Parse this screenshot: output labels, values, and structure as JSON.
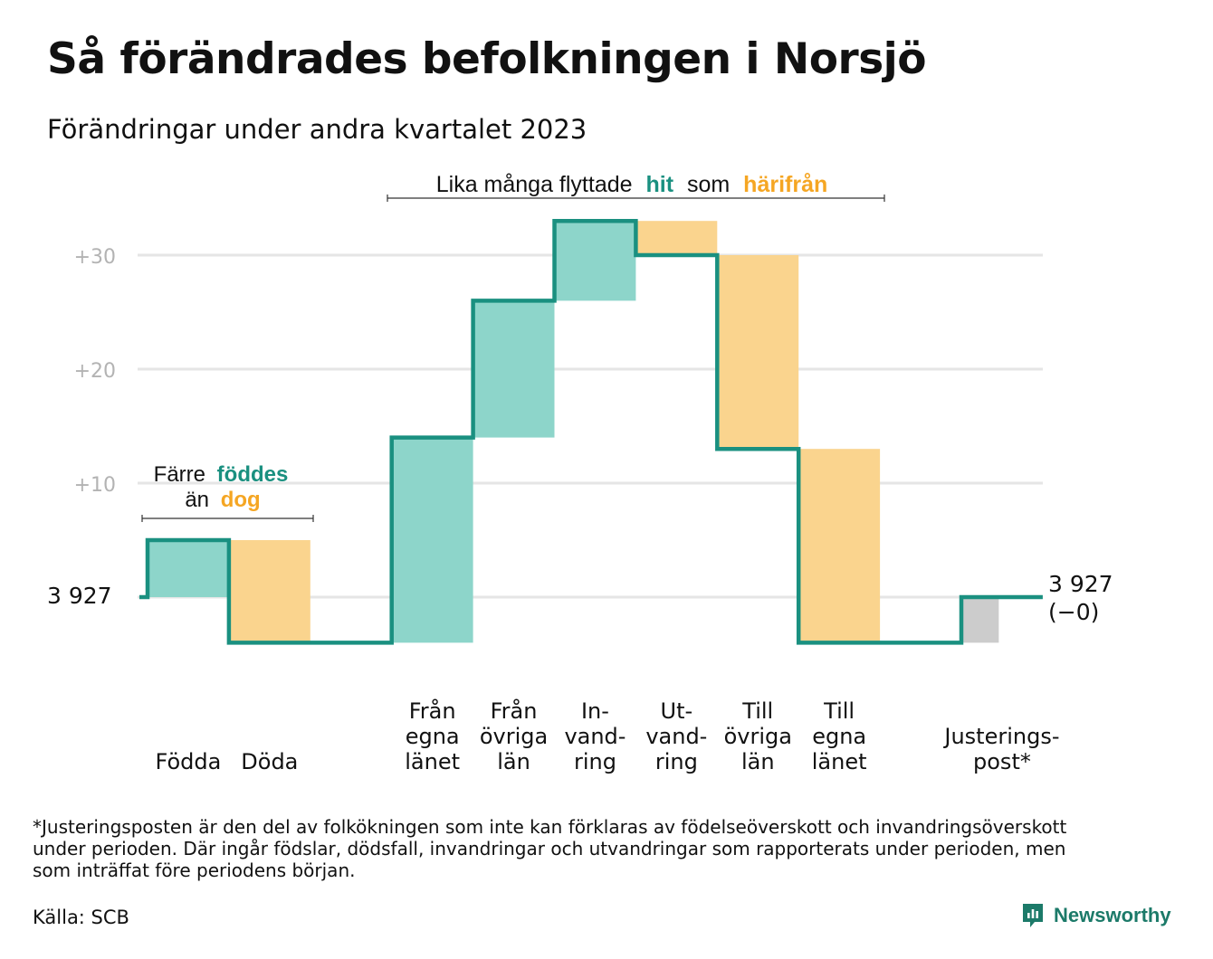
{
  "title": "Så förändrades befolkningen i Norsjö",
  "subtitle": "Förändringar under andra kvartalet 2023",
  "annotations": {
    "birth_death": {
      "line1_prefix": "Färre",
      "line1_highlight": "föddes",
      "line2_prefix": "än",
      "line2_highlight": "dog"
    },
    "migration": {
      "prefix": "Lika många flyttade",
      "highlight_in": "hit",
      "middle": "som",
      "highlight_out": "härifrån"
    }
  },
  "start_label": "3  927",
  "end_label": {
    "value": "3 927",
    "change": "(−0)"
  },
  "footnote": "*Justeringsposten är den del av folkökningen som inte kan förklaras av födelseöverskott och invandringsöverskott\nunder perioden. Där ingår födslar, dödsfall, invandringar och utvandringar som rapporterats under perioden, men\nsom inträffat före periodens början.",
  "source": "Källa: SCB",
  "logo": "Newsworthy",
  "colors": {
    "increase": "#8dd5ca",
    "decrease": "#fad48e",
    "adjustment": "#cccccc",
    "line": "#1a9080",
    "gridline": "#e5e5e5",
    "tick": "#b3b3b3",
    "highlight_in": "#1a9080",
    "highlight_out": "#f5a623"
  },
  "chart_data": {
    "type": "waterfall",
    "title": "Så förändrades befolkningen i Norsjö",
    "subtitle": "Förändringar under andra kvartalet 2023",
    "start_value": 3927,
    "end_value": 3927,
    "y_ticks": [
      {
        "value": 10,
        "label": "+10"
      },
      {
        "value": 20,
        "label": "+20"
      },
      {
        "value": 30,
        "label": "+30"
      }
    ],
    "ylim": [
      -6,
      34
    ],
    "grid": true,
    "steps": [
      {
        "label": [
          "Födda"
        ],
        "kind": "increase",
        "value": 5
      },
      {
        "label": [
          "Döda"
        ],
        "kind": "decrease",
        "value": -9
      },
      {
        "label": [],
        "kind": "gap",
        "value": 0
      },
      {
        "label": [
          "Från",
          "egna",
          "länet"
        ],
        "kind": "increase",
        "value": 18
      },
      {
        "label": [
          "Från",
          "övriga",
          "län"
        ],
        "kind": "increase",
        "value": 12
      },
      {
        "label": [
          "In-",
          "vand-",
          "ring"
        ],
        "kind": "increase",
        "value": 7
      },
      {
        "label": [
          "Ut-",
          "vand-",
          "ring"
        ],
        "kind": "decrease",
        "value": -3
      },
      {
        "label": [
          "Till",
          "övriga",
          "län"
        ],
        "kind": "decrease",
        "value": -17
      },
      {
        "label": [
          "Till",
          "egna",
          "länet"
        ],
        "kind": "decrease",
        "value": -17
      },
      {
        "label": [],
        "kind": "gap",
        "value": 0
      },
      {
        "label": [
          "Justerings-",
          "post*"
        ],
        "kind": "adjustment",
        "value": 4
      }
    ]
  }
}
